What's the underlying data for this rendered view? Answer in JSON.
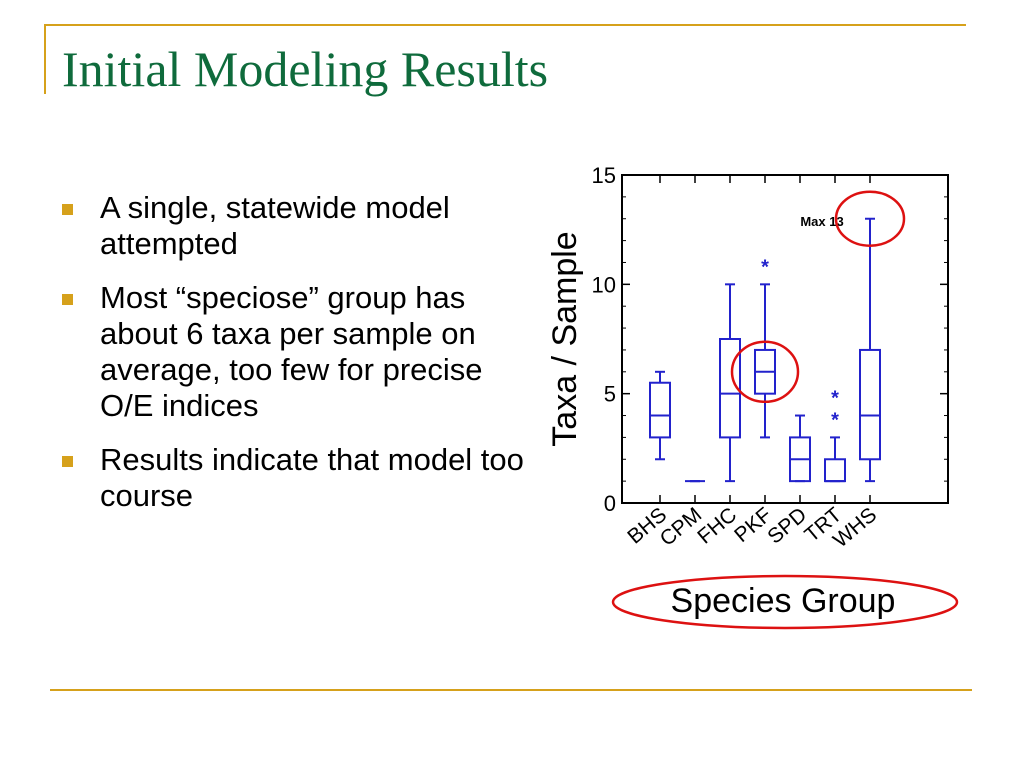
{
  "slide": {
    "title": "Initial Modeling Results",
    "bullets": [
      "A single, statewide model attempted",
      "Most “speciose” group has about 6 taxa per sample on average, too few for precise O/E indices",
      "Results indicate that model too course"
    ]
  },
  "colors": {
    "accent": "#d6a11b",
    "title": "#0f6b3c",
    "box": "#2222cc",
    "highlight_ring": "#dd1111"
  },
  "chart_data": {
    "type": "box",
    "xlabel": "Species Group",
    "ylabel": "Taxa / Sample",
    "ylim": [
      0,
      15
    ],
    "yticks": [
      0,
      5,
      10,
      15
    ],
    "categories": [
      "BHS",
      "CPM",
      "FHC",
      "PKF",
      "SPD",
      "TRT",
      "WHS"
    ],
    "boxes": [
      {
        "min": 2,
        "q1": 3,
        "median": 4,
        "q3": 5.5,
        "max": 6,
        "outliers": []
      },
      {
        "min": 1,
        "q1": 1,
        "median": 1,
        "q3": 1,
        "max": 1,
        "outliers": []
      },
      {
        "min": 1,
        "q1": 3,
        "median": 5,
        "q3": 7.5,
        "max": 10,
        "outliers": []
      },
      {
        "min": 3,
        "q1": 5,
        "median": 6,
        "q3": 7,
        "max": 10,
        "outliers": [
          11
        ]
      },
      {
        "min": 1,
        "q1": 1,
        "median": 2,
        "q3": 3,
        "max": 4,
        "outliers": []
      },
      {
        "min": 1,
        "q1": 1,
        "median": 1,
        "q3": 2,
        "max": 3,
        "outliers": [
          4,
          5
        ]
      },
      {
        "min": 1,
        "q1": 2,
        "median": 4,
        "q3": 7,
        "max": 13,
        "outliers": []
      }
    ],
    "annotation": {
      "text": "Max 13"
    },
    "highlights": [
      "PKF",
      "WHS",
      "Species Group"
    ]
  }
}
